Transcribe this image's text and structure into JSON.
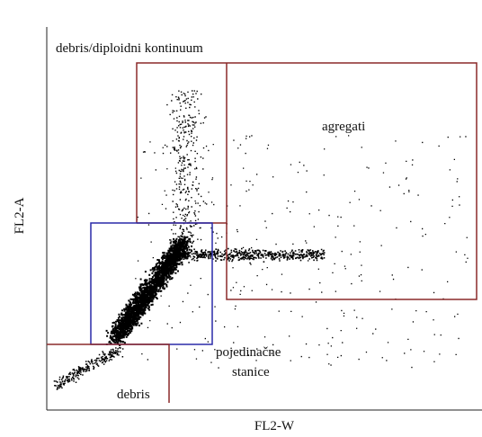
{
  "axes": {
    "x_label": "FL2-W",
    "y_label": "FL2-A"
  },
  "regions": [
    {
      "label": "debris/diploidni kontinuum"
    },
    {
      "label": "agregati"
    },
    {
      "label_lines": [
        "pojedinačne",
        "stanice"
      ]
    },
    {
      "label": "debris"
    }
  ]
}
